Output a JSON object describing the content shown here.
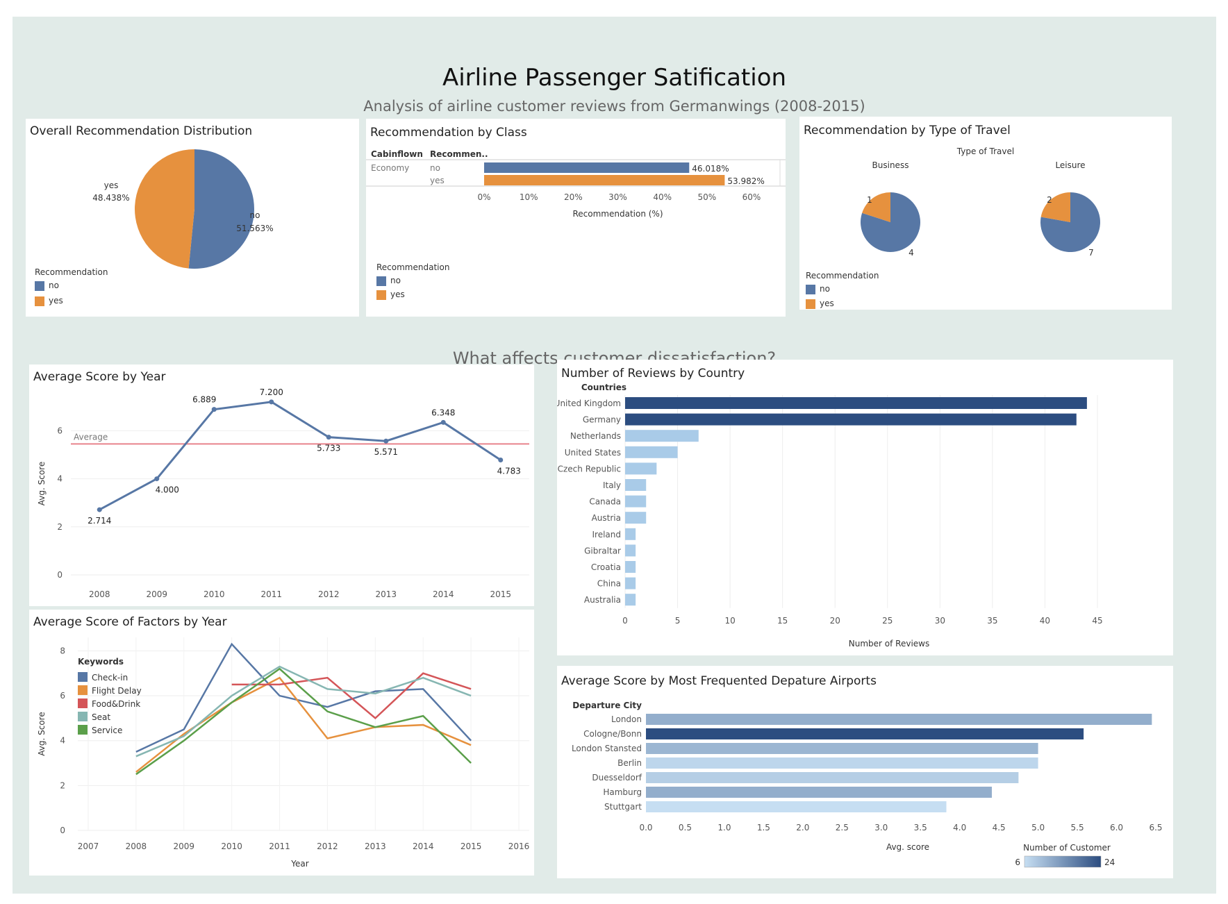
{
  "header": {
    "title": "Airline Passenger Satification",
    "subtitle": "Analysis of airline customer reviews from Germanwings (2008-2015)"
  },
  "section_heading": "What affects customer dissatisfaction?",
  "colors": {
    "no": "#5777a5",
    "yes": "#e6913e",
    "average_line": "#e8838c",
    "checkin": "#5777a5",
    "flight_delay": "#e6913e",
    "food_drink": "#d45558",
    "seat": "#86b6b2",
    "service": "#5b9f4a",
    "country_dark": "#2c4d80",
    "country_light": "#a9cbe8"
  },
  "chart_data": [
    {
      "id": "overall",
      "type": "pie",
      "title": "Overall Recommendation Distribution",
      "slices": [
        {
          "label": "no",
          "value": 51.563,
          "text": "51.563%"
        },
        {
          "label": "yes",
          "value": 48.438,
          "text": "48.438%"
        }
      ],
      "legend": {
        "title": "Recommendation",
        "items": [
          "no",
          "yes"
        ],
        "placement": "bottom-left"
      }
    },
    {
      "id": "by_class",
      "type": "bar",
      "title": "Recommendation by Class",
      "orientation": "horizontal",
      "column_headers": [
        "Cabinflown",
        "Recommen.."
      ],
      "rows": [
        {
          "class": "Economy",
          "recommendation": "no",
          "value": 46.018,
          "text": "46.018%"
        },
        {
          "class": "",
          "recommendation": "yes",
          "value": 53.982,
          "text": "53.982%"
        }
      ],
      "xlabel": "Recommendation (%)",
      "xlim": [
        0,
        60
      ],
      "xticks": [
        "0%",
        "10%",
        "20%",
        "30%",
        "40%",
        "50%",
        "60%"
      ],
      "legend": {
        "title": "Recommendation",
        "items": [
          "no",
          "yes"
        ],
        "placement": "bottom-left"
      }
    },
    {
      "id": "by_travel",
      "type": "pie",
      "title": "Recommendation by Type of Travel",
      "header": "Type of Travel",
      "groups": [
        {
          "name": "Business",
          "slices": [
            {
              "label": "yes",
              "value": 1
            },
            {
              "label": "no",
              "value": 4
            }
          ]
        },
        {
          "name": "Leisure",
          "slices": [
            {
              "label": "yes",
              "value": 2
            },
            {
              "label": "no",
              "value": 7
            }
          ]
        }
      ],
      "legend": {
        "title": "Recommendation",
        "items": [
          "no",
          "yes"
        ],
        "placement": "bottom-left"
      }
    },
    {
      "id": "score_year",
      "type": "line",
      "title": "Average Score by Year",
      "x": [
        "2008",
        "2009",
        "2010",
        "2011",
        "2012",
        "2013",
        "2014",
        "2015"
      ],
      "values": [
        2.714,
        4.0,
        6.889,
        7.2,
        5.733,
        5.571,
        6.348,
        4.783
      ],
      "labels": [
        "2.714",
        "4.000",
        "6.889",
        "7.200",
        "5.733",
        "5.571",
        "6.348",
        "4.783"
      ],
      "reference_line": {
        "label": "Average",
        "value": 5.45
      },
      "xlabel": "Year",
      "ylabel": "Avg. Score",
      "ylim": [
        0,
        7.6
      ],
      "yticks": [
        "0",
        "2",
        "4",
        "6"
      ],
      "grid": true
    },
    {
      "id": "factors_year",
      "type": "line",
      "title": "Average Score of Factors by Year",
      "x": [
        "2008",
        "2009",
        "2010",
        "2011",
        "2012",
        "2013",
        "2014",
        "2015"
      ],
      "xticks": [
        "2007",
        "2008",
        "2009",
        "2010",
        "2011",
        "2012",
        "2013",
        "2014",
        "2015",
        "2016"
      ],
      "series": [
        {
          "name": "Check-in",
          "values": [
            3.5,
            4.5,
            8.3,
            6.0,
            5.5,
            6.2,
            6.3,
            4.0
          ]
        },
        {
          "name": "Flight Delay",
          "values": [
            2.6,
            4.3,
            5.7,
            6.8,
            4.1,
            4.6,
            4.7,
            3.8
          ]
        },
        {
          "name": "Food&Drink",
          "values": [
            null,
            null,
            6.5,
            6.5,
            6.8,
            5.0,
            7.0,
            6.3
          ]
        },
        {
          "name": "Seat",
          "values": [
            3.3,
            4.2,
            6.0,
            7.3,
            6.3,
            6.1,
            6.8,
            6.0
          ]
        },
        {
          "name": "Service",
          "values": [
            2.5,
            4.0,
            5.7,
            7.2,
            5.3,
            4.6,
            5.1,
            3.0
          ]
        }
      ],
      "legend": {
        "title": "Keywords",
        "placement": "top-left"
      },
      "xlabel": "Year",
      "ylabel": "Avg. Score",
      "ylim": [
        0,
        8.6
      ],
      "yticks": [
        "0",
        "2",
        "4",
        "6",
        "8"
      ],
      "grid": true
    },
    {
      "id": "country",
      "type": "bar",
      "title": "Number of Reviews by Country",
      "orientation": "horizontal",
      "axis_header": "Countries",
      "categories": [
        "United Kingdom",
        "Germany",
        "Netherlands",
        "United States",
        "Czech Republic",
        "Italy",
        "Canada",
        "Austria",
        "Ireland",
        "Gibraltar",
        "Croatia",
        "China",
        "Australia"
      ],
      "values": [
        44,
        43,
        7,
        5,
        3,
        2,
        2,
        2,
        1,
        1,
        1,
        1,
        1
      ],
      "xlabel": "Number of Reviews",
      "xlim": [
        0,
        45
      ],
      "xticks": [
        "0",
        "5",
        "10",
        "15",
        "20",
        "25",
        "30",
        "35",
        "40",
        "45"
      ],
      "grid": true
    },
    {
      "id": "airports",
      "type": "bar",
      "title": "Average Score by Most Frequented Depature Airports",
      "orientation": "horizontal",
      "axis_header": "Departure City",
      "categories": [
        "London",
        "Cologne/Bonn",
        "London Stansted",
        "Berlin",
        "Duesseldorf",
        "Hamburg",
        "Stuttgart"
      ],
      "values": [
        6.45,
        5.58,
        5.0,
        5.0,
        4.75,
        4.41,
        3.83
      ],
      "customers": [
        12,
        24,
        11,
        7,
        8,
        12,
        6
      ],
      "xlabel": "Avg. score",
      "xlim": [
        0,
        6.5
      ],
      "xticks": [
        "0.0",
        "0.5",
        "1.0",
        "1.5",
        "2.0",
        "2.5",
        "3.0",
        "3.5",
        "4.0",
        "4.5",
        "5.0",
        "5.5",
        "6.0",
        "6.5"
      ],
      "color_legend": {
        "title": "Number of Customer",
        "min": "6",
        "max": "24",
        "min_value": 6,
        "max_value": 24,
        "from": "#c6def2",
        "to": "#2c4d80"
      }
    }
  ]
}
